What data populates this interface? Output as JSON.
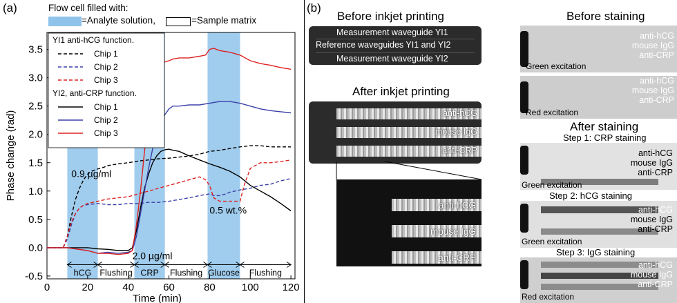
{
  "panel_a": {
    "label": "(a)",
    "header_line1": "Flow cell filled with:",
    "legend_analyte": "=Analyte solution,",
    "legend_matrix": "=Sample matrix",
    "legend_title_yi1": "YI1 anti-hCG function.",
    "legend_title_yi2": "YI2, anti-CRP function.",
    "legend_items_yi1": [
      "Chip 1",
      "Chip 2",
      "Chip 3"
    ],
    "legend_items_yi2": [
      "Chip 1",
      "Chip 2",
      "Chip 3"
    ],
    "annot_09": "0.9 µg/ml",
    "annot_20": "2.0 µg/ml",
    "annot_05": "0.5 wt.%",
    "phases": [
      "hCG",
      "Flushing",
      "CRP",
      "Flushing",
      "Glucose",
      "Flushing"
    ],
    "colors": {
      "chip1": "#000000",
      "chip2": "#3a3fa8",
      "chip3": "#e02020",
      "band": "#8fc3ea"
    }
  },
  "chart_data": {
    "type": "line",
    "xlabel": "Time (min)",
    "ylabel": "Phase change (rad)",
    "xlim": [
      0,
      122
    ],
    "ylim": [
      -0.55,
      3.8
    ],
    "xticks": [
      0,
      20,
      40,
      60,
      80,
      100,
      120
    ],
    "yticks": [
      -0.5,
      0.0,
      0.5,
      1.0,
      1.5,
      2.0,
      2.5,
      3.0,
      3.5
    ],
    "analyte_bands": [
      [
        10,
        25
      ],
      [
        43,
        58
      ],
      [
        79,
        95
      ]
    ],
    "series": [
      {
        "name": "Chip 1",
        "group": "YI1 anti-hCG function.",
        "style": "dashed",
        "color": "#000000",
        "x": [
          0,
          8,
          10,
          12,
          14,
          16,
          18,
          20,
          22,
          24,
          26,
          28,
          30,
          35,
          40,
          45,
          50,
          55,
          60,
          65,
          70,
          75,
          80,
          85,
          90,
          95,
          100,
          105,
          110,
          115,
          120
        ],
        "y": [
          0,
          0,
          0.2,
          0.55,
          0.85,
          1.05,
          1.2,
          1.3,
          1.35,
          1.38,
          1.4,
          1.42,
          1.45,
          1.48,
          1.5,
          1.53,
          1.55,
          1.57,
          1.58,
          1.6,
          1.62,
          1.65,
          1.7,
          1.72,
          1.75,
          1.78,
          1.8,
          1.8,
          1.78,
          1.78,
          1.78
        ]
      },
      {
        "name": "Chip 2",
        "group": "YI1 anti-hCG function.",
        "style": "dashed",
        "color": "#3a3fa8",
        "x": [
          0,
          8,
          10,
          12,
          14,
          16,
          18,
          20,
          25,
          30,
          35,
          40,
          45,
          50,
          55,
          60,
          65,
          70,
          75,
          80,
          82,
          85,
          88,
          90,
          95,
          100,
          105,
          110,
          115,
          120
        ],
        "y": [
          0,
          0,
          0.15,
          0.4,
          0.6,
          0.7,
          0.75,
          0.76,
          0.78,
          0.76,
          0.76,
          0.78,
          0.78,
          0.8,
          0.8,
          0.82,
          0.85,
          0.88,
          0.92,
          0.95,
          0.92,
          0.92,
          0.95,
          0.98,
          1.02,
          1.05,
          1.1,
          1.12,
          1.18,
          1.22
        ]
      },
      {
        "name": "Chip 3",
        "group": "YI1 anti-hCG function.",
        "style": "dashed",
        "color": "#e02020",
        "x": [
          0,
          8,
          10,
          12,
          14,
          16,
          18,
          20,
          25,
          30,
          35,
          40,
          45,
          50,
          55,
          60,
          65,
          70,
          75,
          78,
          80,
          82,
          85,
          90,
          95,
          97,
          100,
          105,
          110,
          115,
          120
        ],
        "y": [
          0,
          0,
          0.2,
          0.45,
          0.6,
          0.7,
          0.75,
          0.78,
          0.82,
          0.86,
          0.88,
          0.9,
          0.95,
          1.0,
          1.05,
          1.1,
          1.15,
          1.2,
          1.25,
          1.2,
          1.1,
          0.88,
          0.82,
          0.82,
          0.82,
          1.1,
          1.4,
          1.5,
          1.5,
          1.52,
          1.55
        ]
      },
      {
        "name": "Chip 1",
        "group": "YI2, anti-CRP function.",
        "style": "solid",
        "color": "#000000",
        "x": [
          0,
          10,
          20,
          25,
          30,
          35,
          40,
          42,
          44,
          46,
          48,
          50,
          52,
          54,
          56,
          58,
          60,
          62,
          65,
          70,
          75,
          80,
          85,
          90,
          95,
          100,
          105,
          110,
          115,
          120
        ],
        "y": [
          0,
          0,
          0,
          -0.02,
          -0.03,
          -0.05,
          -0.05,
          0,
          0.3,
          0.7,
          1.05,
          1.3,
          1.5,
          1.62,
          1.7,
          1.73,
          1.74,
          1.72,
          1.7,
          1.62,
          1.55,
          1.48,
          1.42,
          1.35,
          1.25,
          1.1,
          1.0,
          0.9,
          0.78,
          0.65
        ]
      },
      {
        "name": "Chip 2",
        "group": "YI2, anti-CRP function.",
        "style": "solid",
        "color": "#3a3fa8",
        "x": [
          0,
          10,
          20,
          25,
          30,
          35,
          40,
          42,
          44,
          46,
          48,
          50,
          52,
          54,
          56,
          58,
          60,
          62,
          65,
          70,
          75,
          80,
          85,
          90,
          95,
          100,
          105,
          110,
          115,
          120
        ],
        "y": [
          0,
          0,
          -0.05,
          -0.1,
          -0.08,
          -0.1,
          -0.08,
          -0.05,
          0.2,
          0.6,
          1.0,
          1.4,
          1.75,
          2.0,
          2.2,
          2.35,
          2.45,
          2.5,
          2.5,
          2.52,
          2.52,
          2.55,
          2.58,
          2.58,
          2.55,
          2.5,
          2.45,
          2.42,
          2.4,
          2.38
        ]
      },
      {
        "name": "Chip 3",
        "group": "YI2, anti-CRP function.",
        "style": "solid",
        "color": "#e02020",
        "x": [
          0,
          10,
          20,
          25,
          30,
          35,
          40,
          42,
          44,
          46,
          48,
          50,
          52,
          54,
          56,
          58,
          60,
          62,
          65,
          70,
          75,
          78,
          80,
          82,
          85,
          90,
          95,
          100,
          105,
          110,
          115,
          120
        ],
        "y": [
          0,
          0,
          -0.05,
          -0.1,
          -0.1,
          -0.12,
          -0.1,
          -0.05,
          0.4,
          1.0,
          1.7,
          2.3,
          2.75,
          3.05,
          3.2,
          3.28,
          3.3,
          3.33,
          3.35,
          3.35,
          3.38,
          3.4,
          3.5,
          3.52,
          3.48,
          3.45,
          3.4,
          3.3,
          3.25,
          3.22,
          3.18,
          3.15
        ]
      }
    ]
  },
  "panel_b": {
    "label": "(b)",
    "before_printing": "Before inkjet printing",
    "wg_yi1": "Measurement waveguide YI1",
    "wg_ref": "Reference waveguides YI1 and YI2",
    "wg_yi2": "Measurement waveguide YI2",
    "after_printing": "After inkjet printing",
    "spots": [
      "anti-hCG",
      "mouse IgG",
      "anti-CRP"
    ],
    "before_staining": "Before staining",
    "after_staining": "After staining",
    "green_exc": "Green excitation",
    "red_exc": "Red excitation",
    "step1": "Step 1: CRP staining",
    "step2": "Step 2: hCG staining",
    "step3": "Step 3: IgG staining"
  }
}
